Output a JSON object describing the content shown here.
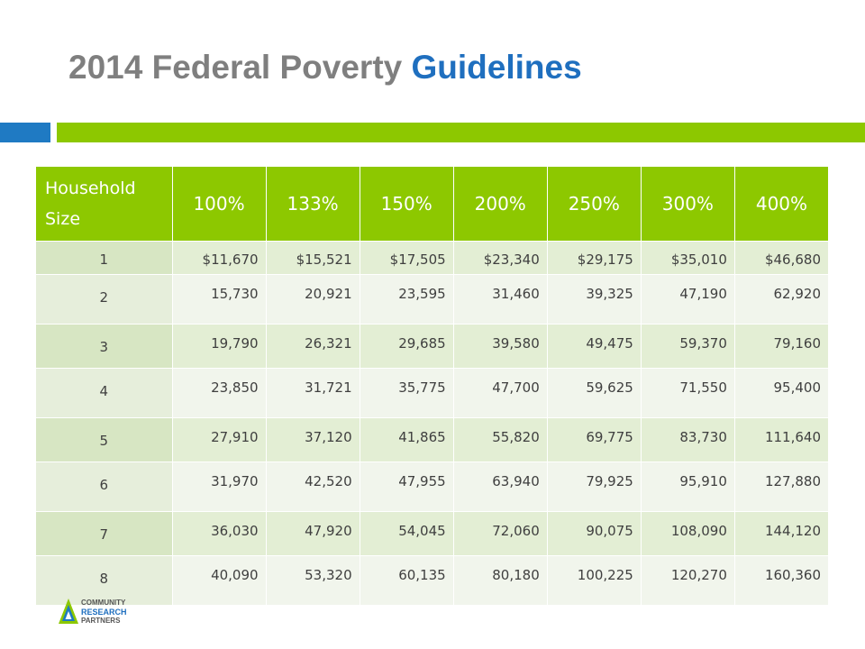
{
  "slide": {
    "title_main": "2014 Federal Poverty ",
    "title_accent": "Guidelines"
  },
  "table": {
    "header_first": "Household Size",
    "headers": [
      "100%",
      "133%",
      "150%",
      "200%",
      "250%",
      "300%",
      "400%"
    ],
    "rows": [
      {
        "size": "1",
        "values": [
          "$11,670",
          "$15,521",
          "$17,505",
          "$23,340",
          "$29,175",
          "$35,010",
          "$46,680"
        ]
      },
      {
        "size": "2",
        "values": [
          "15,730",
          "20,921",
          "23,595",
          "31,460",
          "39,325",
          "47,190",
          "62,920"
        ]
      },
      {
        "size": "3",
        "values": [
          "19,790",
          "26,321",
          "29,685",
          "39,580",
          "49,475",
          "59,370",
          "79,160"
        ]
      },
      {
        "size": "4",
        "values": [
          "23,850",
          "31,721",
          "35,775",
          "47,700",
          "59,625",
          "71,550",
          "95,400"
        ]
      },
      {
        "size": "5",
        "values": [
          "27,910",
          "37,120",
          "41,865",
          "55,820",
          "69,775",
          "83,730",
          "111,640"
        ]
      },
      {
        "size": "6",
        "values": [
          "31,970",
          "42,520",
          "47,955",
          "63,940",
          "79,925",
          "95,910",
          "127,880"
        ]
      },
      {
        "size": "7",
        "values": [
          "36,030",
          "47,920",
          "54,045",
          "72,060",
          "90,075",
          "108,090",
          "144,120"
        ]
      },
      {
        "size": "8",
        "values": [
          "40,090",
          "53,320",
          "60,135",
          "80,180",
          "100,225",
          "120,270",
          "160,360"
        ]
      }
    ]
  },
  "logo": {
    "line1": "COMMUNITY",
    "line2": "RESEARCH",
    "line3": "PARTNERS",
    "icon": "triangle-logo-icon"
  },
  "colors": {
    "accent_blue": "#1f7ac3",
    "accent_green": "#8dc800",
    "title_gray": "#7f7f7f"
  }
}
